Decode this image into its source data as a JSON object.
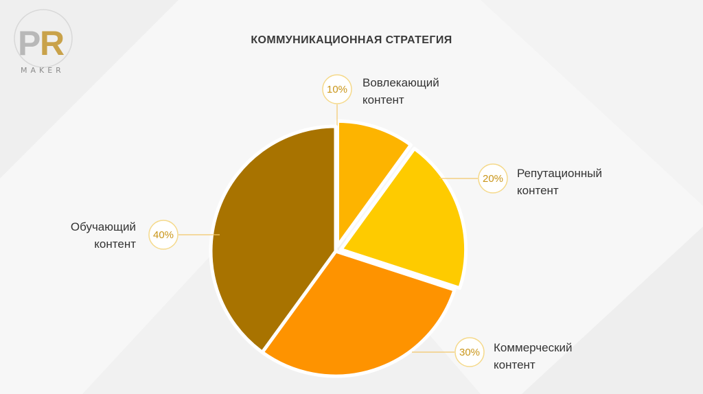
{
  "logo": {
    "mark": "PR",
    "word": "MAKER",
    "colors": {
      "gold": "#c9a24a",
      "gray": "#b9b9b9"
    }
  },
  "title": "КОММУНИКАЦИОННАЯ СТРАТЕГИЯ",
  "chart_data": {
    "type": "pie",
    "title": "КОММУНИКАЦИОННАЯ СТРАТЕГИЯ",
    "start": "top, clockwise",
    "slices": [
      {
        "name": "Вовлекающий контент",
        "line1": "Вовлекающий",
        "line2": "контент",
        "value": 10,
        "percent": "10%",
        "color": "#fdb400",
        "exploded": true
      },
      {
        "name": "Репутационный контент",
        "line1": "Репутационный",
        "line2": "контент",
        "value": 20,
        "percent": "20%",
        "color": "#fecb00",
        "exploded": true
      },
      {
        "name": "Коммерческий контент",
        "line1": "Коммерческий",
        "line2": "контент",
        "value": 30,
        "percent": "30%",
        "color": "#fe9300",
        "exploded": false
      },
      {
        "name": "Обучающий контент",
        "line1": "Обучающий",
        "line2": "контент",
        "value": 40,
        "percent": "40%",
        "color": "#a87300",
        "exploded": false
      }
    ],
    "label_circle_color": "#f5d98a",
    "leader_line_color": "#f3c76a"
  }
}
